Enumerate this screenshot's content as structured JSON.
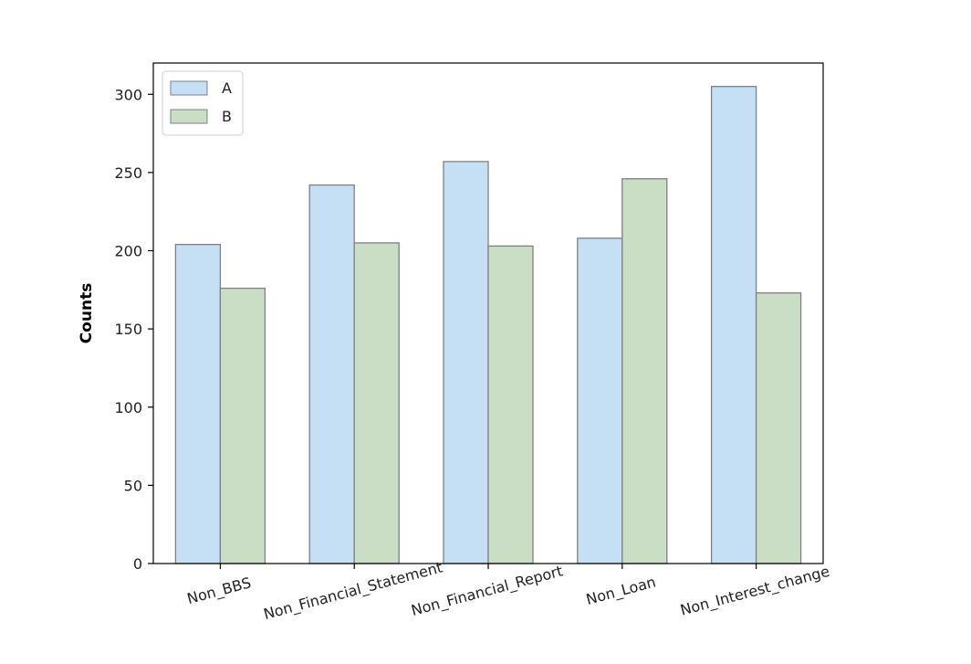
{
  "chart_data": {
    "type": "bar",
    "title": "",
    "xlabel": "",
    "ylabel": "Counts",
    "categories": [
      "Non_BBS",
      "Non_Financial_Statement",
      "Non_Financial_Report",
      "Non_Loan",
      "Non_Interest_change"
    ],
    "series": [
      {
        "name": "A",
        "values": [
          204,
          242,
          257,
          208,
          305
        ],
        "color": "#c5dff4"
      },
      {
        "name": "B",
        "values": [
          176,
          205,
          203,
          246,
          173
        ],
        "color": "#c9dec4"
      }
    ],
    "ylim": [
      0,
      320
    ],
    "yticks": [
      0,
      50,
      100,
      150,
      200,
      250,
      300
    ],
    "bar_edge_color": "#808080",
    "x_tick_rotation_deg": -15,
    "legend": {
      "position": "top-left",
      "entries": [
        "A",
        "B"
      ]
    },
    "grid": false
  }
}
